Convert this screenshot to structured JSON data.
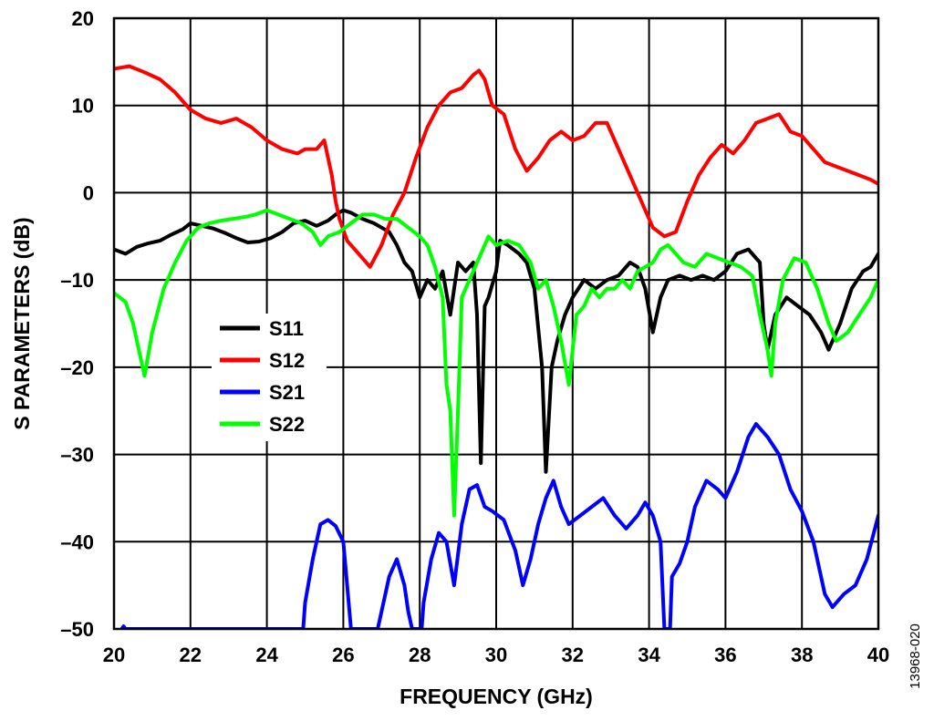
{
  "chart_data": {
    "type": "line",
    "title": "",
    "xlabel": "FREQUENCY (GHz)",
    "ylabel": "S PARAMETERS (dB)",
    "xlim": [
      20,
      40
    ],
    "ylim": [
      -50,
      20
    ],
    "xticks": [
      20,
      22,
      24,
      26,
      28,
      30,
      32,
      34,
      36,
      38,
      40
    ],
    "yticks": [
      20,
      10,
      0,
      -10,
      -20,
      -30,
      -40,
      -50
    ],
    "ytick_labels": [
      "20",
      "10",
      "0",
      "–10",
      "–20",
      "–30",
      "–40",
      "–50"
    ],
    "grid": true,
    "legend_position": "left-center",
    "figure_id": "13968-020",
    "series": [
      {
        "name": "S11",
        "color": "#000000",
        "points": [
          [
            20.0,
            -6.5
          ],
          [
            20.3,
            -7
          ],
          [
            20.6,
            -6.2
          ],
          [
            20.9,
            -5.8
          ],
          [
            21.2,
            -5.5
          ],
          [
            21.5,
            -4.8
          ],
          [
            21.8,
            -4.2
          ],
          [
            22.0,
            -3.5
          ],
          [
            22.3,
            -3.8
          ],
          [
            22.6,
            -4.1
          ],
          [
            22.9,
            -4.6
          ],
          [
            23.2,
            -5.2
          ],
          [
            23.5,
            -5.7
          ],
          [
            23.8,
            -5.6
          ],
          [
            24.1,
            -5.2
          ],
          [
            24.4,
            -4.5
          ],
          [
            24.7,
            -3.5
          ],
          [
            25.0,
            -3.2
          ],
          [
            25.3,
            -3.8
          ],
          [
            25.6,
            -3.2
          ],
          [
            25.8,
            -2.5
          ],
          [
            26.0,
            -2.0
          ],
          [
            26.2,
            -2.3
          ],
          [
            26.5,
            -3
          ],
          [
            26.8,
            -3.5
          ],
          [
            27.0,
            -4
          ],
          [
            27.2,
            -4.5
          ],
          [
            27.4,
            -6
          ],
          [
            27.6,
            -8
          ],
          [
            27.8,
            -9
          ],
          [
            28.0,
            -12
          ],
          [
            28.2,
            -10
          ],
          [
            28.4,
            -11
          ],
          [
            28.6,
            -9
          ],
          [
            28.8,
            -14
          ],
          [
            29.0,
            -8
          ],
          [
            29.2,
            -9
          ],
          [
            29.4,
            -8
          ],
          [
            29.5,
            -14
          ],
          [
            29.6,
            -31
          ],
          [
            29.7,
            -13
          ],
          [
            29.8,
            -12
          ],
          [
            30.0,
            -9
          ],
          [
            30.1,
            -5.5
          ],
          [
            30.3,
            -6
          ],
          [
            30.6,
            -7
          ],
          [
            30.8,
            -8
          ],
          [
            31.0,
            -11
          ],
          [
            31.2,
            -20
          ],
          [
            31.3,
            -32
          ],
          [
            31.45,
            -20
          ],
          [
            31.6,
            -17
          ],
          [
            31.8,
            -14
          ],
          [
            32.0,
            -12
          ],
          [
            32.3,
            -10
          ],
          [
            32.6,
            -11
          ],
          [
            32.9,
            -10
          ],
          [
            33.2,
            -9.5
          ],
          [
            33.5,
            -8
          ],
          [
            33.7,
            -8.5
          ],
          [
            33.9,
            -11
          ],
          [
            34.1,
            -16
          ],
          [
            34.3,
            -12
          ],
          [
            34.5,
            -10
          ],
          [
            34.8,
            -9.5
          ],
          [
            35.1,
            -10
          ],
          [
            35.4,
            -9.5
          ],
          [
            35.7,
            -10
          ],
          [
            36.0,
            -9
          ],
          [
            36.3,
            -7
          ],
          [
            36.6,
            -6.5
          ],
          [
            36.9,
            -8
          ],
          [
            37.0,
            -15
          ],
          [
            37.1,
            -18
          ],
          [
            37.3,
            -14
          ],
          [
            37.6,
            -12
          ],
          [
            37.9,
            -13
          ],
          [
            38.2,
            -14
          ],
          [
            38.5,
            -16
          ],
          [
            38.7,
            -18
          ],
          [
            39.0,
            -15
          ],
          [
            39.3,
            -11
          ],
          [
            39.6,
            -9
          ],
          [
            39.8,
            -8.5
          ],
          [
            40.0,
            -7
          ]
        ]
      },
      {
        "name": "S12",
        "color": "#ff0000",
        "points": [
          [
            20.0,
            14.2
          ],
          [
            20.4,
            14.5
          ],
          [
            20.8,
            13.8
          ],
          [
            21.2,
            13
          ],
          [
            21.6,
            11.5
          ],
          [
            22.0,
            9.5
          ],
          [
            22.4,
            8.5
          ],
          [
            22.8,
            8
          ],
          [
            23.2,
            8.5
          ],
          [
            23.6,
            7.5
          ],
          [
            24.0,
            6
          ],
          [
            24.4,
            5
          ],
          [
            24.8,
            4.5
          ],
          [
            25.0,
            5
          ],
          [
            25.3,
            5
          ],
          [
            25.5,
            6
          ],
          [
            25.7,
            2
          ],
          [
            25.8,
            -1
          ],
          [
            25.9,
            -3
          ],
          [
            26.1,
            -5.5
          ],
          [
            26.4,
            -7
          ],
          [
            26.7,
            -8.5
          ],
          [
            27.0,
            -6
          ],
          [
            27.3,
            -2.5
          ],
          [
            27.6,
            0
          ],
          [
            27.9,
            4
          ],
          [
            28.2,
            7.5
          ],
          [
            28.5,
            10
          ],
          [
            28.8,
            11.5
          ],
          [
            29.1,
            12
          ],
          [
            29.4,
            13.5
          ],
          [
            29.55,
            14
          ],
          [
            29.7,
            13
          ],
          [
            29.9,
            10
          ],
          [
            30.2,
            9
          ],
          [
            30.5,
            5
          ],
          [
            30.8,
            2.5
          ],
          [
            31.1,
            4
          ],
          [
            31.4,
            6
          ],
          [
            31.7,
            7
          ],
          [
            32.0,
            6
          ],
          [
            32.3,
            6.5
          ],
          [
            32.6,
            8
          ],
          [
            32.9,
            8
          ],
          [
            33.2,
            5
          ],
          [
            33.5,
            2
          ],
          [
            33.8,
            -1
          ],
          [
            34.1,
            -4
          ],
          [
            34.4,
            -5
          ],
          [
            34.7,
            -4.5
          ],
          [
            35.0,
            -1
          ],
          [
            35.3,
            2
          ],
          [
            35.6,
            4
          ],
          [
            35.9,
            5.5
          ],
          [
            36.2,
            4.5
          ],
          [
            36.5,
            6
          ],
          [
            36.8,
            8
          ],
          [
            37.1,
            8.5
          ],
          [
            37.4,
            9
          ],
          [
            37.7,
            7
          ],
          [
            38.0,
            6.5
          ],
          [
            38.3,
            5
          ],
          [
            38.6,
            3.5
          ],
          [
            38.9,
            3
          ],
          [
            39.2,
            2.5
          ],
          [
            39.5,
            2
          ],
          [
            39.8,
            1.5
          ],
          [
            40.0,
            1
          ]
        ]
      },
      {
        "name": "S21",
        "color": "#0000ff",
        "points": [
          [
            20.2,
            -50
          ],
          [
            20.25,
            -49.7
          ],
          [
            20.3,
            -50
          ],
          [
            24.95,
            -50
          ],
          [
            25.0,
            -47
          ],
          [
            25.2,
            -42
          ],
          [
            25.4,
            -38
          ],
          [
            25.6,
            -37.5
          ],
          [
            25.8,
            -38.2
          ],
          [
            26.0,
            -40
          ],
          [
            26.1,
            -45
          ],
          [
            26.2,
            -50
          ],
          [
            26.9,
            -50
          ],
          [
            27.0,
            -48
          ],
          [
            27.2,
            -44
          ],
          [
            27.4,
            -42
          ],
          [
            27.6,
            -45
          ],
          [
            27.7,
            -48
          ],
          [
            27.8,
            -50
          ],
          [
            28.05,
            -50
          ],
          [
            28.1,
            -47
          ],
          [
            28.3,
            -42
          ],
          [
            28.5,
            -39
          ],
          [
            28.7,
            -40
          ],
          [
            28.9,
            -45
          ],
          [
            29.1,
            -38
          ],
          [
            29.3,
            -34
          ],
          [
            29.5,
            -33.5
          ],
          [
            29.7,
            -36
          ],
          [
            29.9,
            -36.5
          ],
          [
            30.2,
            -37.5
          ],
          [
            30.5,
            -41
          ],
          [
            30.7,
            -45
          ],
          [
            30.9,
            -42
          ],
          [
            31.1,
            -38
          ],
          [
            31.3,
            -35
          ],
          [
            31.5,
            -33
          ],
          [
            31.7,
            -36
          ],
          [
            31.9,
            -38
          ],
          [
            32.2,
            -37
          ],
          [
            32.5,
            -36
          ],
          [
            32.8,
            -35
          ],
          [
            33.1,
            -37
          ],
          [
            33.4,
            -38.5
          ],
          [
            33.7,
            -37
          ],
          [
            33.9,
            -35.5
          ],
          [
            34.1,
            -37
          ],
          [
            34.3,
            -40
          ],
          [
            34.4,
            -50
          ],
          [
            34.55,
            -50
          ],
          [
            34.6,
            -44
          ],
          [
            34.8,
            -42.5
          ],
          [
            35.0,
            -40
          ],
          [
            35.2,
            -36
          ],
          [
            35.5,
            -33
          ],
          [
            35.8,
            -34
          ],
          [
            36.0,
            -35
          ],
          [
            36.3,
            -32
          ],
          [
            36.6,
            -28
          ],
          [
            36.8,
            -26.5
          ],
          [
            37.1,
            -28
          ],
          [
            37.4,
            -30
          ],
          [
            37.7,
            -34
          ],
          [
            38.0,
            -36.5
          ],
          [
            38.3,
            -40
          ],
          [
            38.6,
            -46
          ],
          [
            38.8,
            -47.5
          ],
          [
            39.1,
            -46
          ],
          [
            39.4,
            -45
          ],
          [
            39.7,
            -42
          ],
          [
            40.0,
            -37
          ]
        ]
      },
      {
        "name": "S22",
        "color": "#00ff00",
        "points": [
          [
            20.0,
            -11.5
          ],
          [
            20.3,
            -12.5
          ],
          [
            20.5,
            -15
          ],
          [
            20.7,
            -19
          ],
          [
            20.8,
            -21
          ],
          [
            21.0,
            -16
          ],
          [
            21.3,
            -11
          ],
          [
            21.6,
            -8
          ],
          [
            21.9,
            -5.5
          ],
          [
            22.2,
            -4
          ],
          [
            22.5,
            -3.5
          ],
          [
            22.8,
            -3.2
          ],
          [
            23.1,
            -3
          ],
          [
            23.4,
            -2.8
          ],
          [
            23.7,
            -2.5
          ],
          [
            24.0,
            -2
          ],
          [
            24.3,
            -2.5
          ],
          [
            24.6,
            -3
          ],
          [
            24.9,
            -3.5
          ],
          [
            25.2,
            -4.5
          ],
          [
            25.4,
            -6
          ],
          [
            25.6,
            -5
          ],
          [
            25.9,
            -4.5
          ],
          [
            26.2,
            -3.5
          ],
          [
            26.5,
            -2.5
          ],
          [
            26.8,
            -2.5
          ],
          [
            27.1,
            -3
          ],
          [
            27.4,
            -3
          ],
          [
            27.7,
            -4
          ],
          [
            28.0,
            -5
          ],
          [
            28.2,
            -6
          ],
          [
            28.4,
            -8.5
          ],
          [
            28.6,
            -12
          ],
          [
            28.7,
            -22
          ],
          [
            28.8,
            -25
          ],
          [
            28.9,
            -37
          ],
          [
            29.0,
            -25
          ],
          [
            29.1,
            -12
          ],
          [
            29.3,
            -10
          ],
          [
            29.6,
            -7
          ],
          [
            29.8,
            -5
          ],
          [
            30.0,
            -6
          ],
          [
            30.3,
            -5.5
          ],
          [
            30.6,
            -6
          ],
          [
            30.9,
            -8
          ],
          [
            31.1,
            -11
          ],
          [
            31.3,
            -10
          ],
          [
            31.5,
            -13
          ],
          [
            31.7,
            -17
          ],
          [
            31.9,
            -22
          ],
          [
            32.1,
            -14
          ],
          [
            32.3,
            -13
          ],
          [
            32.5,
            -11
          ],
          [
            32.7,
            -12
          ],
          [
            32.9,
            -11
          ],
          [
            33.1,
            -11
          ],
          [
            33.3,
            -10
          ],
          [
            33.5,
            -11
          ],
          [
            33.7,
            -9
          ],
          [
            33.9,
            -8.5
          ],
          [
            34.1,
            -8
          ],
          [
            34.3,
            -6.5
          ],
          [
            34.5,
            -6
          ],
          [
            34.7,
            -7
          ],
          [
            34.9,
            -8
          ],
          [
            35.2,
            -8.5
          ],
          [
            35.5,
            -7
          ],
          [
            35.8,
            -7.5
          ],
          [
            36.1,
            -8
          ],
          [
            36.4,
            -8.5
          ],
          [
            36.7,
            -9.5
          ],
          [
            36.9,
            -14
          ],
          [
            37.1,
            -18
          ],
          [
            37.2,
            -21
          ],
          [
            37.3,
            -15
          ],
          [
            37.5,
            -10
          ],
          [
            37.8,
            -7.5
          ],
          [
            38.1,
            -8
          ],
          [
            38.4,
            -11
          ],
          [
            38.7,
            -15
          ],
          [
            38.9,
            -17
          ],
          [
            39.2,
            -16
          ],
          [
            39.5,
            -14
          ],
          [
            39.8,
            -12
          ],
          [
            40.0,
            -10
          ]
        ]
      }
    ]
  }
}
